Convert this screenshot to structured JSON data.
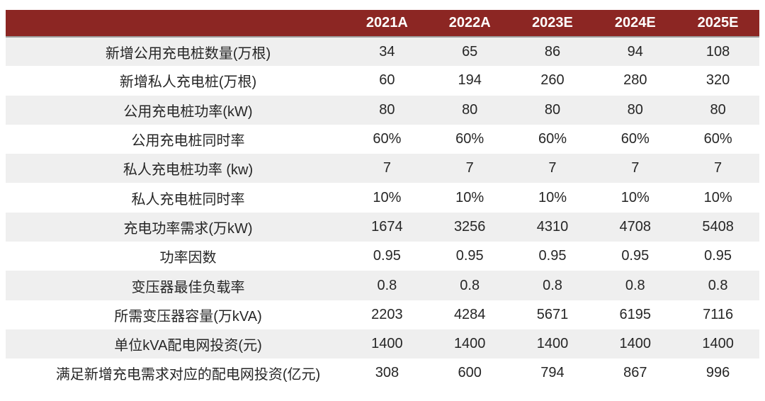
{
  "chart_data": {
    "type": "table",
    "title": "",
    "label_column_header": "",
    "columns": [
      "2021A",
      "2022A",
      "2023E",
      "2024E",
      "2025E"
    ],
    "rows": [
      {
        "label": "新增公用充电桩数量(万根)",
        "values": [
          "34",
          "65",
          "86",
          "94",
          "108"
        ]
      },
      {
        "label": "新增私人充电桩(万根)",
        "values": [
          "60",
          "194",
          "260",
          "280",
          "320"
        ]
      },
      {
        "label": "公用充电桩功率(kW)",
        "values": [
          "80",
          "80",
          "80",
          "80",
          "80"
        ]
      },
      {
        "label": "公用充电桩同时率",
        "values": [
          "60%",
          "60%",
          "60%",
          "60%",
          "60%"
        ]
      },
      {
        "label": "私人充电桩功率 (kw)",
        "values": [
          "7",
          "7",
          "7",
          "7",
          "7"
        ]
      },
      {
        "label": "私人充电桩同时率",
        "values": [
          "10%",
          "10%",
          "10%",
          "10%",
          "10%"
        ]
      },
      {
        "label": "充电功率需求(万kW)",
        "values": [
          "1674",
          "3256",
          "4310",
          "4708",
          "5408"
        ]
      },
      {
        "label": "功率因数",
        "values": [
          "0.95",
          "0.95",
          "0.95",
          "0.95",
          "0.95"
        ]
      },
      {
        "label": "变压器最佳负载率",
        "values": [
          "0.8",
          "0.8",
          "0.8",
          "0.8",
          "0.8"
        ]
      },
      {
        "label": "所需变压器容量(万kVA)",
        "values": [
          "2203",
          "4284",
          "5671",
          "6195",
          "7116"
        ]
      },
      {
        "label": "单位kVA配电网投资(元)",
        "values": [
          "1400",
          "1400",
          "1400",
          "1400",
          "1400"
        ]
      },
      {
        "label": "满足新增充电需求对应的配电网投资(亿元)",
        "values": [
          "308",
          "600",
          "794",
          "867",
          "996"
        ]
      }
    ],
    "layout": {
      "legend": "none",
      "grid": "off",
      "row_striping": "odd-rows-gray"
    }
  },
  "colors": {
    "header_bg": "#8c2623",
    "header_text": "#ffffff",
    "header_border": "#9e9e9e",
    "row_alt_bg": "#efefef",
    "row_bg": "#ffffff",
    "text": "#262626"
  }
}
